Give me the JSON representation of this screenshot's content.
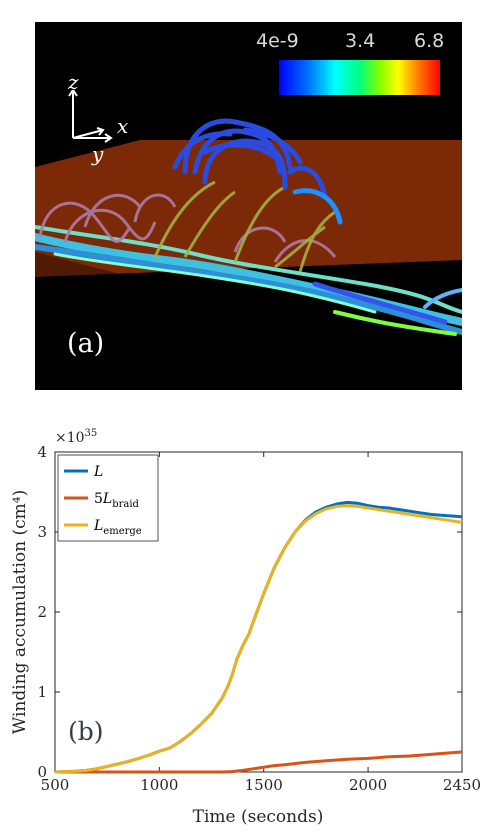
{
  "panel_a": {
    "label": "(a)",
    "colorbar": {
      "min_label": "4e-9",
      "mid_label": "3.4",
      "max_label": "6.8"
    },
    "axes": {
      "z": "z",
      "x": "x",
      "y": "y"
    }
  },
  "chart_data": {
    "type": "line",
    "panel_label": "(b)",
    "xlabel": "Time (seconds)",
    "ylabel": "Winding accumulation (cm⁴)",
    "y_multiplier": "×10^35",
    "xlim": [
      500,
      2450
    ],
    "ylim": [
      0,
      4
    ],
    "xticks": [
      500,
      1000,
      1500,
      2000,
      2450
    ],
    "yticks": [
      0,
      1,
      2,
      3,
      4
    ],
    "legend_position": "top-left",
    "grid": false,
    "series": [
      {
        "name": "L",
        "color": "#0072bd",
        "x": [
          500,
          600,
          650,
          700,
          750,
          800,
          850,
          900,
          950,
          1000,
          1050,
          1100,
          1150,
          1200,
          1250,
          1300,
          1330,
          1350,
          1370,
          1400,
          1430,
          1450,
          1500,
          1550,
          1600,
          1650,
          1700,
          1750,
          1800,
          1850,
          1900,
          1950,
          2000,
          2050,
          2100,
          2150,
          2200,
          2250,
          2300,
          2350,
          2400,
          2450
        ],
        "values": [
          0.0,
          0.01,
          0.02,
          0.04,
          0.07,
          0.1,
          0.13,
          0.17,
          0.21,
          0.26,
          0.3,
          0.38,
          0.48,
          0.6,
          0.73,
          0.92,
          1.08,
          1.22,
          1.4,
          1.58,
          1.73,
          1.88,
          2.23,
          2.55,
          2.8,
          3.0,
          3.15,
          3.25,
          3.31,
          3.35,
          3.37,
          3.36,
          3.33,
          3.31,
          3.3,
          3.28,
          3.26,
          3.24,
          3.22,
          3.21,
          3.2,
          3.19
        ]
      },
      {
        "name": "5L_braid",
        "color": "#d95319",
        "x": [
          500,
          600,
          700,
          800,
          900,
          1000,
          1100,
          1200,
          1300,
          1350,
          1400,
          1450,
          1500,
          1550,
          1600,
          1700,
          1800,
          1900,
          2000,
          2100,
          2200,
          2300,
          2400,
          2450
        ],
        "values": [
          0.0,
          0.0,
          0.0,
          0.0,
          0.0,
          0.0,
          0.0,
          0.0,
          0.0,
          0.005,
          0.02,
          0.04,
          0.06,
          0.08,
          0.09,
          0.12,
          0.14,
          0.16,
          0.17,
          0.19,
          0.2,
          0.22,
          0.24,
          0.25
        ]
      },
      {
        "name": "L_emerge",
        "color": "#edb120",
        "x": [
          500,
          600,
          650,
          700,
          750,
          800,
          850,
          900,
          950,
          1000,
          1050,
          1100,
          1150,
          1200,
          1250,
          1300,
          1330,
          1350,
          1370,
          1400,
          1430,
          1450,
          1500,
          1550,
          1600,
          1650,
          1700,
          1750,
          1800,
          1850,
          1900,
          1950,
          2000,
          2050,
          2100,
          2150,
          2200,
          2250,
          2300,
          2350,
          2400,
          2450
        ],
        "values": [
          0.0,
          0.01,
          0.02,
          0.04,
          0.07,
          0.1,
          0.13,
          0.17,
          0.21,
          0.26,
          0.3,
          0.38,
          0.48,
          0.6,
          0.73,
          0.92,
          1.08,
          1.22,
          1.4,
          1.58,
          1.73,
          1.88,
          2.23,
          2.55,
          2.8,
          3.0,
          3.14,
          3.23,
          3.29,
          3.32,
          3.33,
          3.32,
          3.3,
          3.28,
          3.26,
          3.24,
          3.22,
          3.2,
          3.18,
          3.16,
          3.14,
          3.12
        ]
      }
    ]
  }
}
